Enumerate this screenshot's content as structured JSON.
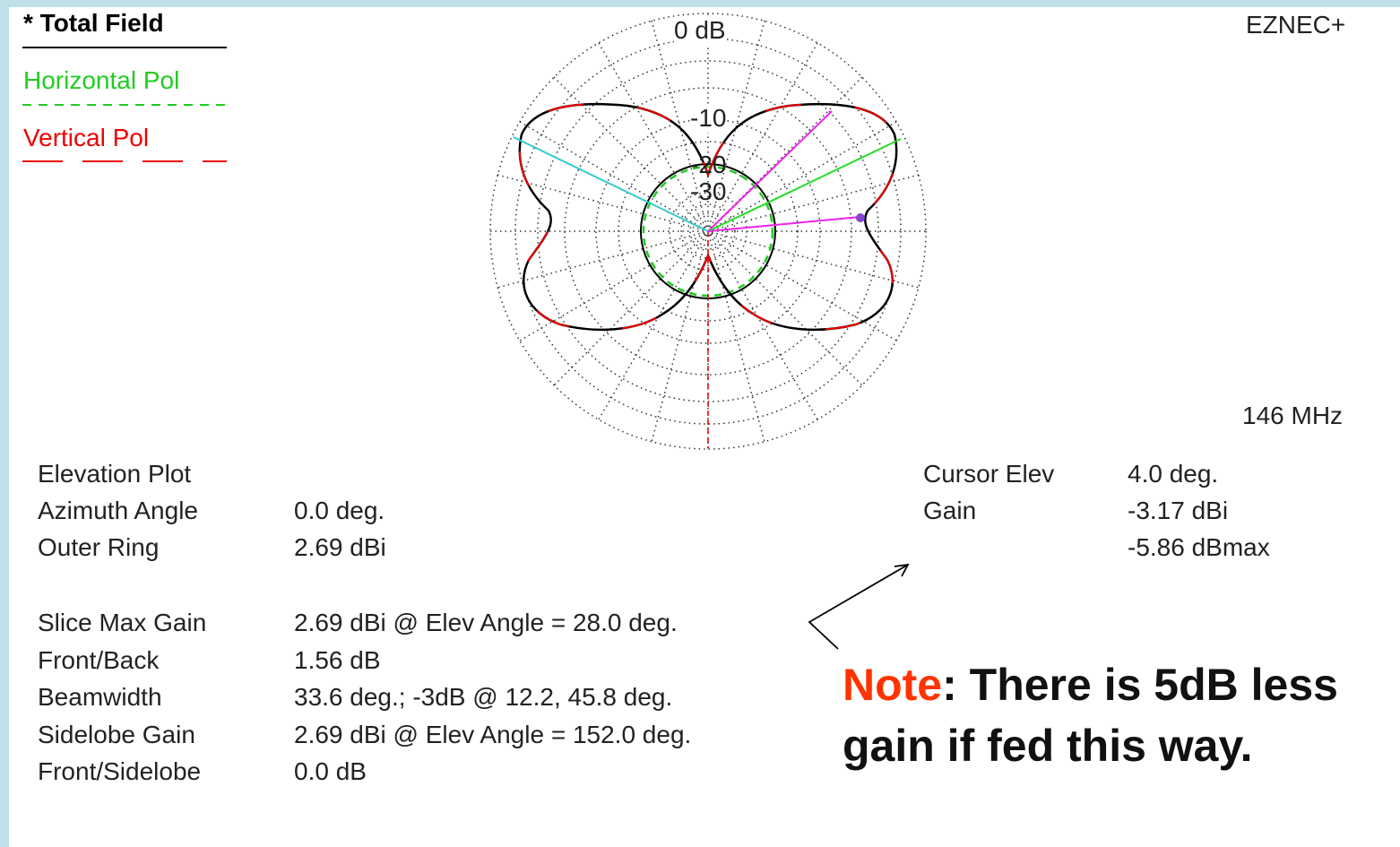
{
  "legend": {
    "title": "* Total Field",
    "items": [
      "Horizontal Pol",
      "Vertical Pol"
    ]
  },
  "brand": "EZNEC+",
  "rings": [
    "0 dB",
    "-10",
    "-20",
    "-30"
  ],
  "frequency": "146 MHz",
  "info": {
    "rows": [
      {
        "label": "Elevation Plot"
      },
      {
        "label": "Azimuth Angle",
        "value": "0.0 deg."
      },
      {
        "label": "Outer Ring",
        "value": "2.69 dBi"
      }
    ]
  },
  "stats": {
    "rows": [
      {
        "label": "Slice Max Gain",
        "value": "2.69 dBi @ Elev Angle = 28.0 deg."
      },
      {
        "label": "Front/Back",
        "value": "1.56 dB"
      },
      {
        "label": "Beamwidth",
        "value": "33.6 deg.; -3dB @ 12.2, 45.8 deg."
      },
      {
        "label": "Sidelobe Gain",
        "value": "2.69 dBi @ Elev Angle = 152.0 deg."
      },
      {
        "label": "Front/Sidelobe",
        "value": "0.0 dB"
      }
    ]
  },
  "cursor": {
    "rows": [
      {
        "label": "Cursor Elev",
        "values": [
          "4.0 deg."
        ]
      },
      {
        "label": "Gain",
        "values": [
          "-3.17 dBi",
          "-5.86 dBmax"
        ]
      }
    ]
  },
  "note": {
    "lead": "Note",
    "text": ": There is 5dB less gain if fed this way."
  }
}
